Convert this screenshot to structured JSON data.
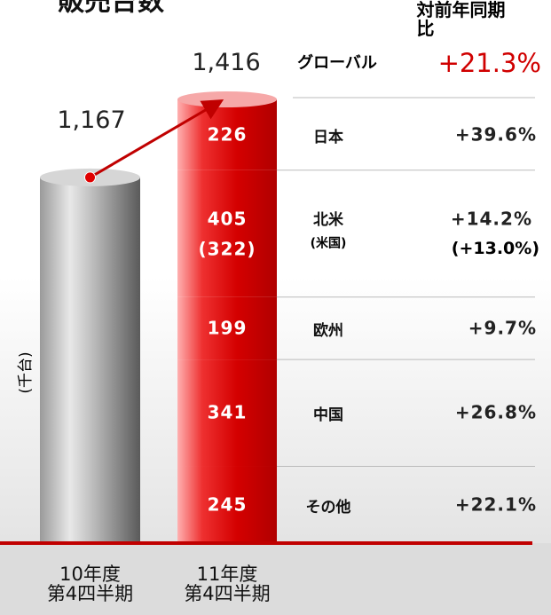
{
  "chart_data": {
    "type": "bar",
    "title": "販売台数",
    "ylabel": "(千台)",
    "categories": [
      "10年度\n第4四半期",
      "11年度\n第4四半期"
    ],
    "values": [
      1167,
      1416
    ],
    "value_labels": [
      "1,167",
      "1,416"
    ],
    "growth_header": "対前年同期比",
    "total_name": "グローバル",
    "total_growth": "+21.3%",
    "segments": [
      {
        "name": "その他",
        "value": 245,
        "growth": "+22.1%"
      },
      {
        "name": "中国",
        "value": 341,
        "growth": "+26.8%"
      },
      {
        "name": "欧州",
        "value": 199,
        "growth": "+9.7%"
      },
      {
        "name": "北米",
        "value": 405,
        "growth": "+14.2%",
        "sub_name": "(米国)",
        "sub_value": 322,
        "sub_value_label": "(322)",
        "sub_growth": "(+13.0%)"
      },
      {
        "name": "日本",
        "value": 226,
        "growth": "+39.6%"
      }
    ]
  }
}
